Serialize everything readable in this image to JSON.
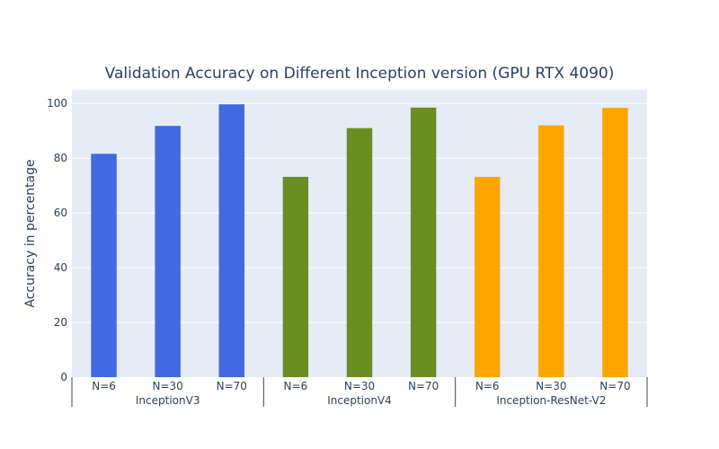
{
  "chart_data": {
    "type": "bar",
    "title": "Validation Accuracy on Different Inception version (GPU RTX 4090)",
    "xlabel": "",
    "ylabel": "Accuracy in percentage",
    "ylim": [
      0,
      105
    ],
    "yticks": [
      0,
      20,
      40,
      60,
      80,
      100
    ],
    "grid": true,
    "groups": [
      {
        "name": "InceptionV3",
        "color": "#4169e1",
        "categories": [
          "N=6",
          "N=30",
          "N=70"
        ],
        "values": [
          81.6,
          91.8,
          99.7
        ]
      },
      {
        "name": "InceptionV4",
        "color": "#6b8e23",
        "categories": [
          "N=6",
          "N=30",
          "N=70"
        ],
        "values": [
          73.2,
          91.0,
          98.5
        ]
      },
      {
        "name": "Inception-ResNet-V2",
        "color": "#ffa500",
        "categories": [
          "N=6",
          "N=30",
          "N=70"
        ],
        "values": [
          73.2,
          92.0,
          98.4
        ]
      }
    ],
    "plot_background": "#e5ecf6",
    "gridline_color": "#ffffff"
  }
}
